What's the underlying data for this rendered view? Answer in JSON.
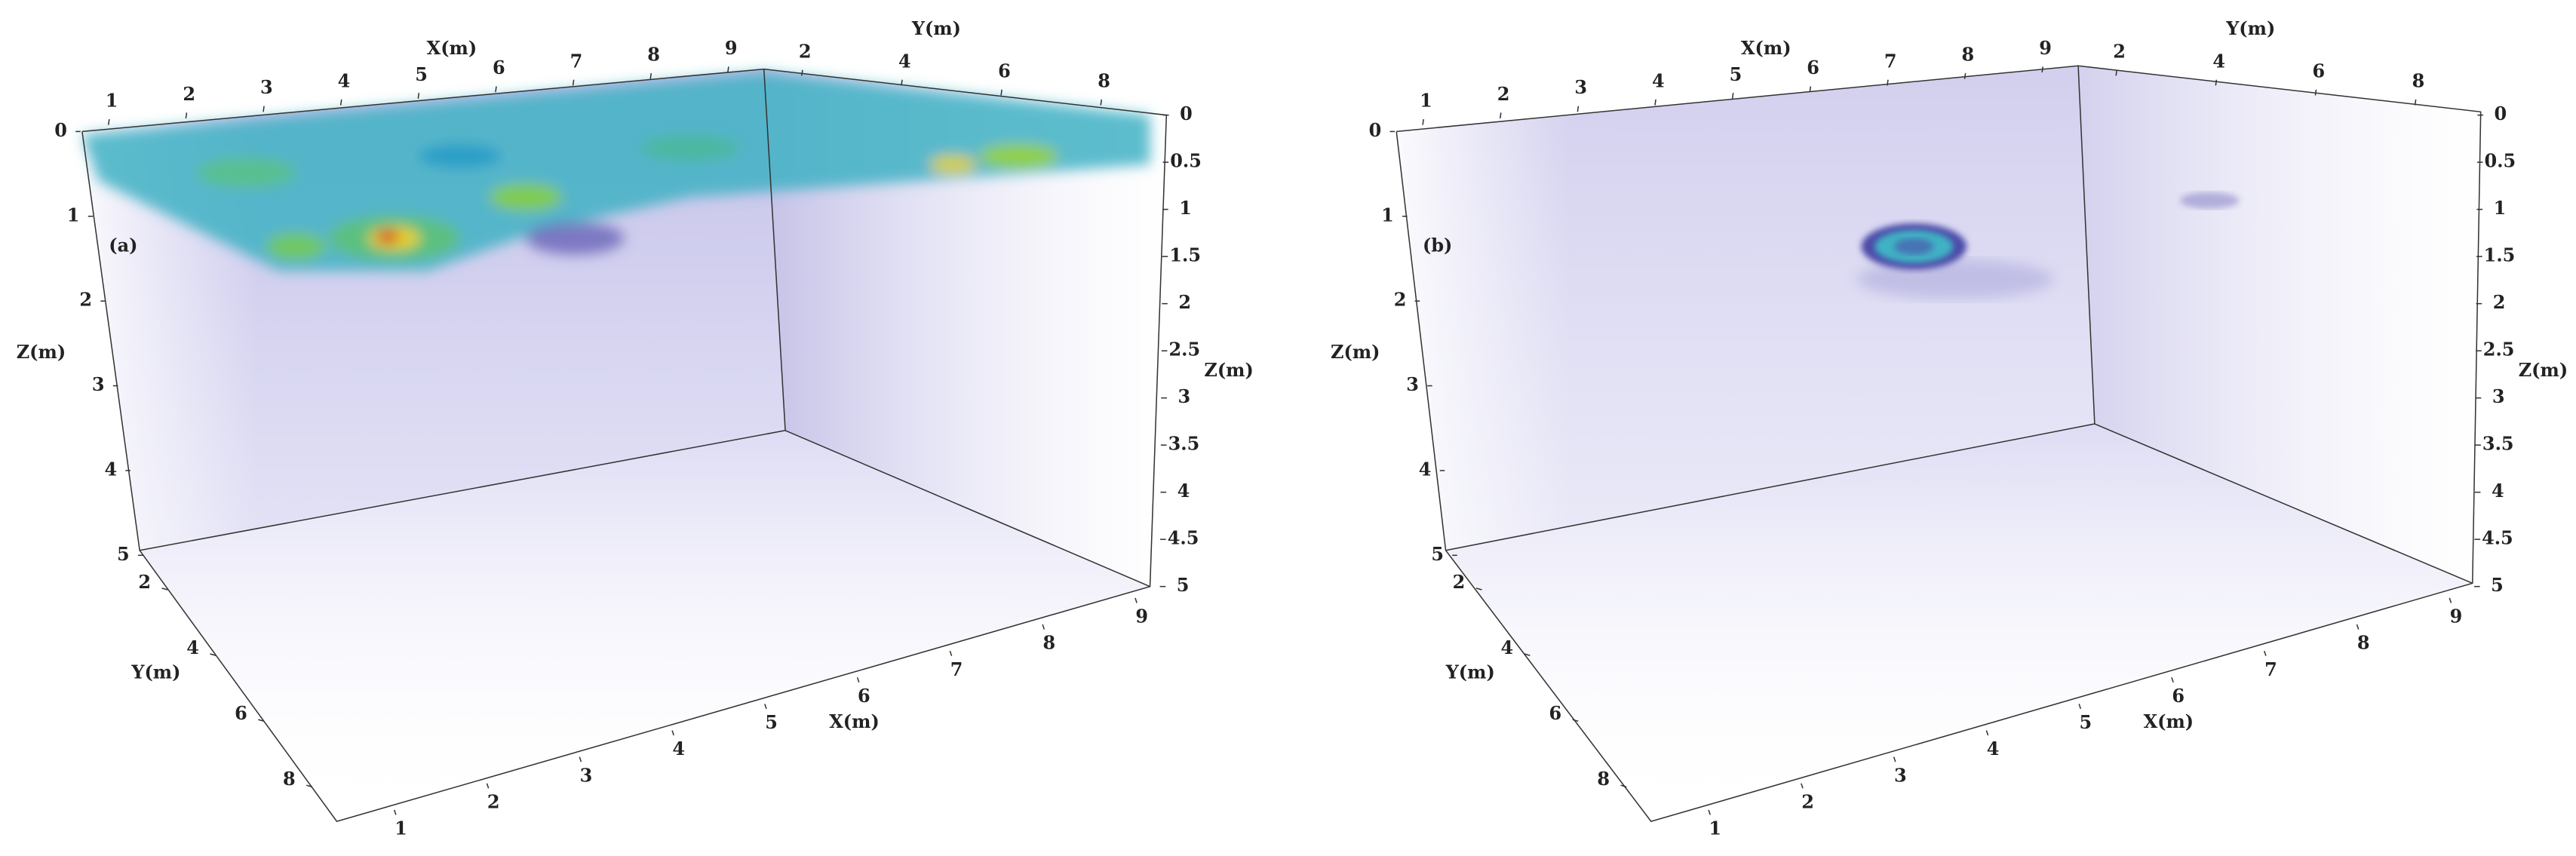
{
  "panels": [
    {
      "label": "(a)",
      "axes": [
        {
          "title": "X(m)",
          "ticks": [
            1,
            2,
            3,
            4,
            5,
            6,
            7,
            8,
            9
          ]
        },
        {
          "title": "Y(m)",
          "ticks": [
            2,
            4,
            6,
            8
          ]
        },
        {
          "title": "Z(m)",
          "ticks": [
            0,
            1,
            2,
            3,
            4,
            5
          ]
        },
        {
          "title": "Z(m)",
          "ticks": [
            0,
            0.5,
            1,
            1.5,
            2,
            2.5,
            3,
            3.5,
            4,
            4.5,
            5
          ]
        },
        {
          "title": "Y(m)",
          "ticks": [
            2,
            4,
            6,
            8
          ]
        },
        {
          "title": "X(m)",
          "ticks": [
            1,
            2,
            3,
            4,
            5,
            6,
            7,
            8,
            9
          ]
        }
      ]
    },
    {
      "label": "(b)",
      "axes": [
        {
          "title": "X(m)",
          "ticks": [
            1,
            2,
            3,
            4,
            5,
            6,
            7,
            8,
            9
          ]
        },
        {
          "title": "Y(m)",
          "ticks": [
            2,
            4,
            6,
            8
          ]
        },
        {
          "title": "Z(m)",
          "ticks": [
            0,
            1,
            2,
            3,
            4,
            5
          ]
        },
        {
          "title": "Z(m)",
          "ticks": [
            0,
            0.5,
            1,
            1.5,
            2,
            2.5,
            3,
            3.5,
            4,
            4.5,
            5
          ]
        },
        {
          "title": "Y(m)",
          "ticks": [
            2,
            4,
            6,
            8
          ]
        },
        {
          "title": "X(m)",
          "ticks": [
            1,
            2,
            3,
            4,
            5,
            6,
            7,
            8,
            9
          ]
        }
      ]
    }
  ]
}
